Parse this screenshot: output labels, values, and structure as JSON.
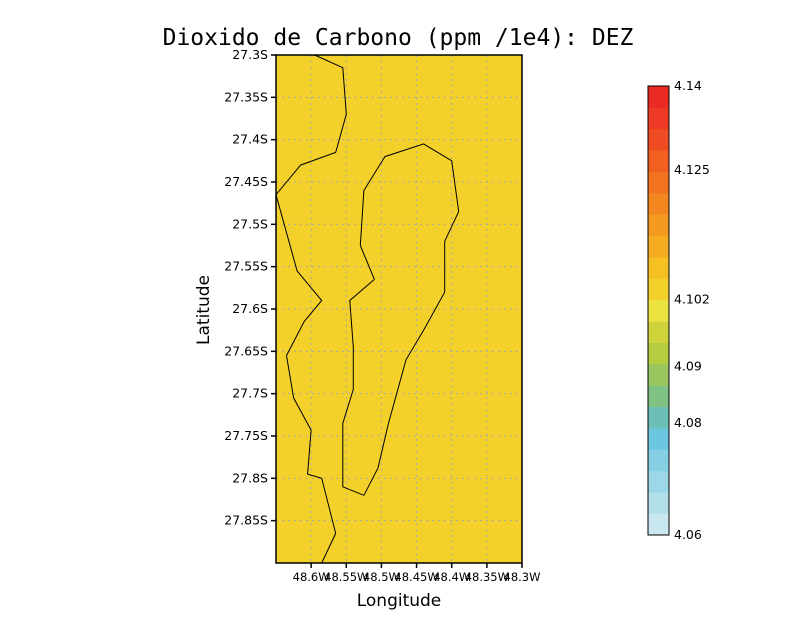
{
  "chart_data": {
    "type": "heatmap",
    "title": "Dioxido de Carbono (ppm /1e4): DEZ",
    "xlabel": "Longitude",
    "ylabel": "Latitude",
    "xlim": [
      48.65,
      48.3
    ],
    "ylim": [
      27.3,
      27.9
    ],
    "x_ticks": [
      {
        "value": 48.6,
        "label": "48.6W"
      },
      {
        "value": 48.55,
        "label": "48.55W"
      },
      {
        "value": 48.5,
        "label": "48.5W"
      },
      {
        "value": 48.45,
        "label": "48.45W"
      },
      {
        "value": 48.4,
        "label": "48.4W"
      },
      {
        "value": 48.35,
        "label": "48.35W"
      },
      {
        "value": 48.3,
        "label": "48.3W"
      }
    ],
    "y_ticks": [
      {
        "value": 27.3,
        "label": "27.3S"
      },
      {
        "value": 27.35,
        "label": "27.35S"
      },
      {
        "value": 27.4,
        "label": "27.4S"
      },
      {
        "value": 27.45,
        "label": "27.45S"
      },
      {
        "value": 27.5,
        "label": "27.5S"
      },
      {
        "value": 27.55,
        "label": "27.55S"
      },
      {
        "value": 27.6,
        "label": "27.6S"
      },
      {
        "value": 27.65,
        "label": "27.65S"
      },
      {
        "value": 27.7,
        "label": "27.7S"
      },
      {
        "value": 27.75,
        "label": "27.75S"
      },
      {
        "value": 27.8,
        "label": "27.8S"
      },
      {
        "value": 27.85,
        "label": "27.85S"
      }
    ],
    "grid": true,
    "field_value": 4.1,
    "field_color": "#f3d12a",
    "colorbar": {
      "min": 4.06,
      "max": 4.14,
      "labels": [
        "4.14",
        "4.125",
        "4.102",
        "4.09",
        "4.08",
        "4.06"
      ],
      "label_values": [
        4.14,
        4.125,
        4.102,
        4.09,
        4.08,
        4.06
      ],
      "colors": [
        "#c9e7ee",
        "#b2dfea",
        "#9bd7e6",
        "#84cfe3",
        "#6ac7df",
        "#6cbfb4",
        "#80c283",
        "#99c65f",
        "#b4cc3f",
        "#cfd33b",
        "#ebe33f",
        "#f3d12a",
        "#f6c023",
        "#f5ac20",
        "#f49a1f",
        "#f3861e",
        "#f2731f",
        "#f15f21",
        "#f04c23",
        "#ee3a24",
        "#ec2a24"
      ]
    },
    "coastline_lines": [
      [
        [
          48.595,
          27.3
        ],
        [
          48.555,
          27.315
        ],
        [
          48.55,
          27.37
        ],
        [
          48.565,
          27.415
        ],
        [
          48.615,
          27.43
        ],
        [
          48.65,
          27.465
        ],
        [
          48.62,
          27.555
        ],
        [
          48.585,
          27.59
        ],
        [
          48.61,
          27.615
        ],
        [
          48.635,
          27.655
        ],
        [
          48.625,
          27.705
        ],
        [
          48.6,
          27.743
        ],
        [
          48.605,
          27.795
        ],
        [
          48.585,
          27.8
        ],
        [
          48.565,
          27.865
        ],
        [
          48.585,
          27.9
        ]
      ],
      [
        [
          48.51,
          27.565
        ],
        [
          48.53,
          27.525
        ],
        [
          48.525,
          27.46
        ],
        [
          48.495,
          27.42
        ],
        [
          48.44,
          27.405
        ],
        [
          48.4,
          27.425
        ],
        [
          48.39,
          27.485
        ],
        [
          48.41,
          27.52
        ],
        [
          48.41,
          27.58
        ],
        [
          48.44,
          27.625
        ],
        [
          48.465,
          27.66
        ],
        [
          48.49,
          27.735
        ],
        [
          48.505,
          27.788
        ],
        [
          48.525,
          27.82
        ],
        [
          48.555,
          27.81
        ],
        [
          48.555,
          27.735
        ],
        [
          48.54,
          27.695
        ],
        [
          48.54,
          27.645
        ],
        [
          48.545,
          27.59
        ],
        [
          48.51,
          27.565
        ]
      ]
    ]
  }
}
